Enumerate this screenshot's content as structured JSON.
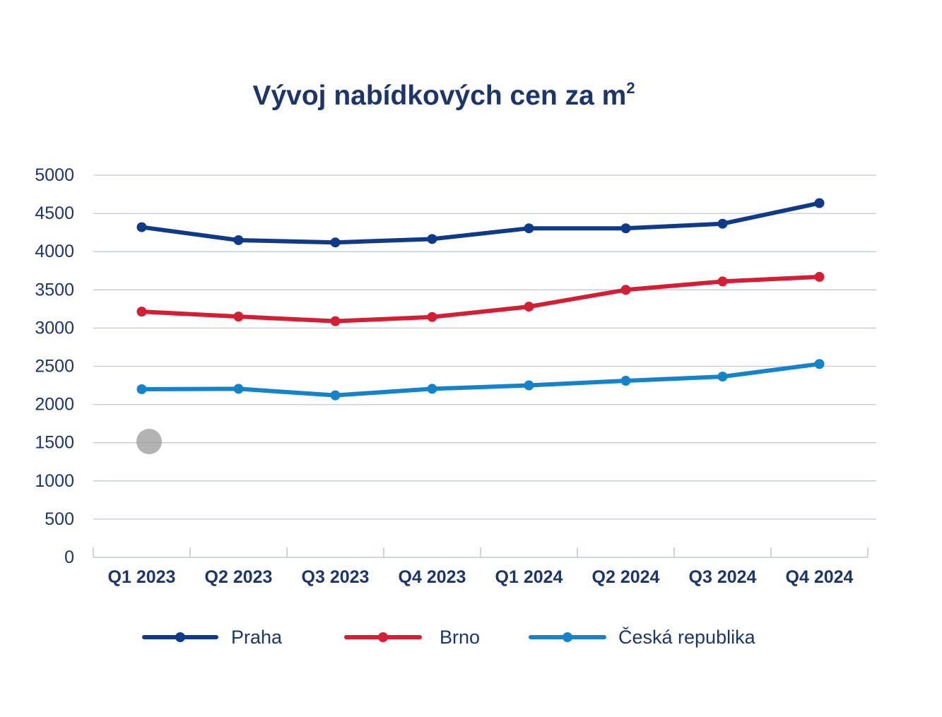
{
  "chart_data": {
    "type": "line",
    "title_main": "Vývoj nabídkových cen za m",
    "title_superscript": "2",
    "categories": [
      "Q1 2023",
      "Q2 2023",
      "Q3 2023",
      "Q4 2023",
      "Q1 2024",
      "Q2 2024",
      "Q3 2024",
      "Q4 2024"
    ],
    "series": [
      {
        "name": "Praha",
        "color": "#0f3a87",
        "values": [
          4320,
          4150,
          4120,
          4165,
          4305,
          4305,
          4365,
          4635
        ]
      },
      {
        "name": "Brno",
        "color": "#d31f35",
        "values": [
          3215,
          3150,
          3090,
          3145,
          3280,
          3500,
          3610,
          3670
        ]
      },
      {
        "name": "Česká republika",
        "color": "#1583c9",
        "values": [
          2200,
          2205,
          2120,
          2205,
          2250,
          2310,
          2365,
          2530
        ]
      }
    ],
    "ylim": [
      0,
      5000
    ],
    "yticks": [
      0,
      500,
      1000,
      1500,
      2000,
      2500,
      3000,
      3500,
      4000,
      4500,
      5000
    ],
    "grid": true,
    "legend_position": "bottom",
    "xlabel": "",
    "ylabel": ""
  }
}
